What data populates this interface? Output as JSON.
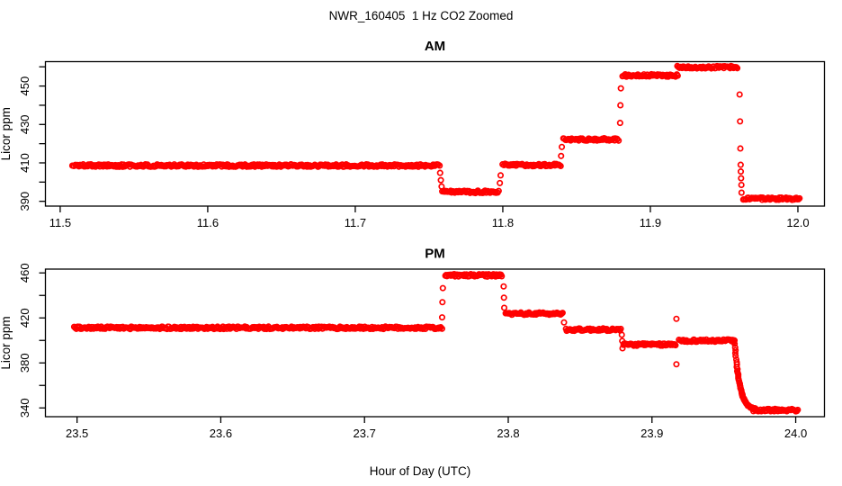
{
  "figure": {
    "title": "NWR_160405  1 Hz CO2 Zoomed",
    "xlabel": "Hour of Day (UTC)",
    "background_color": "#FFFFFF",
    "axis_color": "#000000",
    "point_color": "#FF0000"
  },
  "chart_data": [
    {
      "id": "am",
      "type": "scatter",
      "title": "AM",
      "ylabel": "Licor ppm",
      "marker": "open-circle",
      "color": "#FF0000",
      "grid": false,
      "legend": false,
      "xlim": [
        11.49,
        12.018
      ],
      "ylim": [
        387.5,
        462.7
      ],
      "xticks": [
        11.5,
        11.6,
        11.7,
        11.8,
        11.9,
        12.0
      ],
      "xtick_labels": [
        "11.5",
        "11.6",
        "11.7",
        "11.8",
        "11.9",
        "12.0"
      ],
      "yticks": [
        390,
        400,
        410,
        420,
        430,
        440,
        450,
        460
      ],
      "ytick_labeled": [
        390,
        410,
        430,
        450
      ],
      "segments": [
        {
          "type": "plateau",
          "t_start": 11.508,
          "t_end": 11.757,
          "value": 408.6
        },
        {
          "type": "plateau",
          "t_start": 11.759,
          "t_end": 11.797,
          "value": 394.9
        },
        {
          "type": "plateau",
          "t_start": 11.8,
          "t_end": 11.839,
          "value": 408.9
        },
        {
          "type": "plateau",
          "t_start": 11.841,
          "t_end": 11.8785,
          "value": 422.2
        },
        {
          "type": "plateau",
          "t_start": 11.881,
          "t_end": 11.9185,
          "value": 455.5
        },
        {
          "type": "plateau",
          "t_start": 11.9185,
          "t_end": 11.959,
          "value": 459.8
        },
        {
          "type": "plateau",
          "t_start": 11.963,
          "t_end": 12.001,
          "value": 391.4
        }
      ],
      "transition_points": [
        {
          "t": 11.7575,
          "v": 404.8
        },
        {
          "t": 11.758,
          "v": 401.0
        },
        {
          "t": 11.7585,
          "v": 397.7
        },
        {
          "t": 11.798,
          "v": 399.5
        },
        {
          "t": 11.7985,
          "v": 403.5
        },
        {
          "t": 11.8395,
          "v": 413.6
        },
        {
          "t": 11.84,
          "v": 418.3
        },
        {
          "t": 11.8795,
          "v": 430.8
        },
        {
          "t": 11.8797,
          "v": 440.0
        },
        {
          "t": 11.88,
          "v": 448.8
        },
        {
          "t": 11.9605,
          "v": 445.6
        },
        {
          "t": 11.9608,
          "v": 431.6
        },
        {
          "t": 11.961,
          "v": 417.5
        },
        {
          "t": 11.9612,
          "v": 409.0
        },
        {
          "t": 11.9613,
          "v": 405.5
        },
        {
          "t": 11.9615,
          "v": 402.0
        },
        {
          "t": 11.9617,
          "v": 398.5
        },
        {
          "t": 11.9618,
          "v": 394.5
        }
      ]
    },
    {
      "id": "pm",
      "type": "scatter",
      "title": "PM",
      "ylabel": "Licor ppm",
      "marker": "open-circle",
      "color": "#FF0000",
      "grid": false,
      "legend": false,
      "xlim": [
        23.478,
        24.02
      ],
      "ylim": [
        332.2,
        463.4
      ],
      "xticks": [
        23.5,
        23.6,
        23.7,
        23.8,
        23.9,
        24.0
      ],
      "xtick_labels": [
        "23.5",
        "23.6",
        "23.7",
        "23.8",
        "23.9",
        "24.0"
      ],
      "yticks": [
        340,
        360,
        380,
        400,
        420,
        440,
        460
      ],
      "ytick_labeled": [
        340,
        380,
        420,
        460
      ],
      "segments": [
        {
          "type": "plateau",
          "t_start": 23.498,
          "t_end": 23.754,
          "value": 411.2
        },
        {
          "type": "plateau",
          "t_start": 23.756,
          "t_end": 23.7955,
          "value": 457.8
        },
        {
          "type": "plateau",
          "t_start": 23.798,
          "t_end": 23.838,
          "value": 423.8
        },
        {
          "type": "plateau",
          "t_start": 23.84,
          "t_end": 23.8785,
          "value": 409.6
        },
        {
          "type": "plateau",
          "t_start": 23.88,
          "t_end": 23.9165,
          "value": 396.3
        },
        {
          "type": "plateau",
          "t_start": 23.919,
          "t_end": 23.9575,
          "value": 399.8
        },
        {
          "type": "decay",
          "t_start": 23.9575,
          "t_end": 23.972,
          "v_start": 399.8,
          "v_end": 338.0,
          "tau": 0.0035
        },
        {
          "type": "plateau",
          "t_start": 23.9705,
          "t_end": 24.0015,
          "value": 338.0
        }
      ],
      "transition_points": [
        {
          "t": 23.754,
          "v": 420.5
        },
        {
          "t": 23.7542,
          "v": 434.0
        },
        {
          "t": 23.7545,
          "v": 446.5
        },
        {
          "t": 23.7968,
          "v": 448.0
        },
        {
          "t": 23.797,
          "v": 438.0
        },
        {
          "t": 23.7972,
          "v": 429.0
        },
        {
          "t": 23.8388,
          "v": 416.0
        },
        {
          "t": 23.879,
          "v": 405.0
        },
        {
          "t": 23.8793,
          "v": 399.5
        },
        {
          "t": 23.8795,
          "v": 393.0
        },
        {
          "t": 23.917,
          "v": 419.2
        },
        {
          "t": 23.917,
          "v": 378.8
        }
      ]
    }
  ]
}
